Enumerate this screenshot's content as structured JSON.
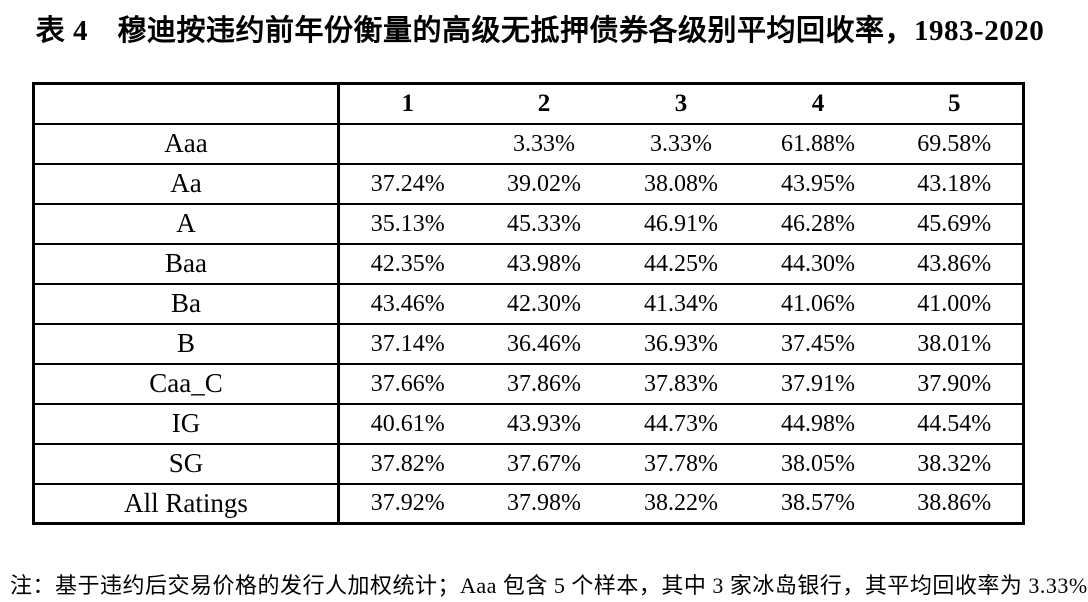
{
  "title": "表 4　穆迪按违约前年份衡量的高级无抵押债券各级别平均回收率，1983-2020",
  "table": {
    "corner": "",
    "columns": [
      "1",
      "2",
      "3",
      "4",
      "5"
    ],
    "rows": [
      {
        "label": "Aaa",
        "values": [
          "",
          "3.33%",
          "3.33%",
          "61.88%",
          "69.58%"
        ]
      },
      {
        "label": "Aa",
        "values": [
          "37.24%",
          "39.02%",
          "38.08%",
          "43.95%",
          "43.18%"
        ]
      },
      {
        "label": "A",
        "values": [
          "35.13%",
          "45.33%",
          "46.91%",
          "46.28%",
          "45.69%"
        ]
      },
      {
        "label": "Baa",
        "values": [
          "42.35%",
          "43.98%",
          "44.25%",
          "44.30%",
          "43.86%"
        ]
      },
      {
        "label": "Ba",
        "values": [
          "43.46%",
          "42.30%",
          "41.34%",
          "41.06%",
          "41.00%"
        ]
      },
      {
        "label": "B",
        "values": [
          "37.14%",
          "36.46%",
          "36.93%",
          "37.45%",
          "38.01%"
        ]
      },
      {
        "label": "Caa_C",
        "values": [
          "37.66%",
          "37.86%",
          "37.83%",
          "37.91%",
          "37.90%"
        ]
      },
      {
        "label": "IG",
        "values": [
          "40.61%",
          "43.93%",
          "44.73%",
          "44.98%",
          "44.54%"
        ]
      },
      {
        "label": "SG",
        "values": [
          "37.82%",
          "37.67%",
          "37.78%",
          "38.05%",
          "38.32%"
        ]
      },
      {
        "label": "All Ratings",
        "values": [
          "37.92%",
          "37.98%",
          "38.22%",
          "38.57%",
          "38.86%"
        ]
      }
    ]
  },
  "footnote": "注：基于违约后交易价格的发行人加权统计；Aaa 包含 5 个样本，其中 3 家冰岛银行，其平均回收率为 3.33%",
  "colors": {
    "text": "#000000",
    "border": "#000000",
    "background": "#ffffff"
  }
}
